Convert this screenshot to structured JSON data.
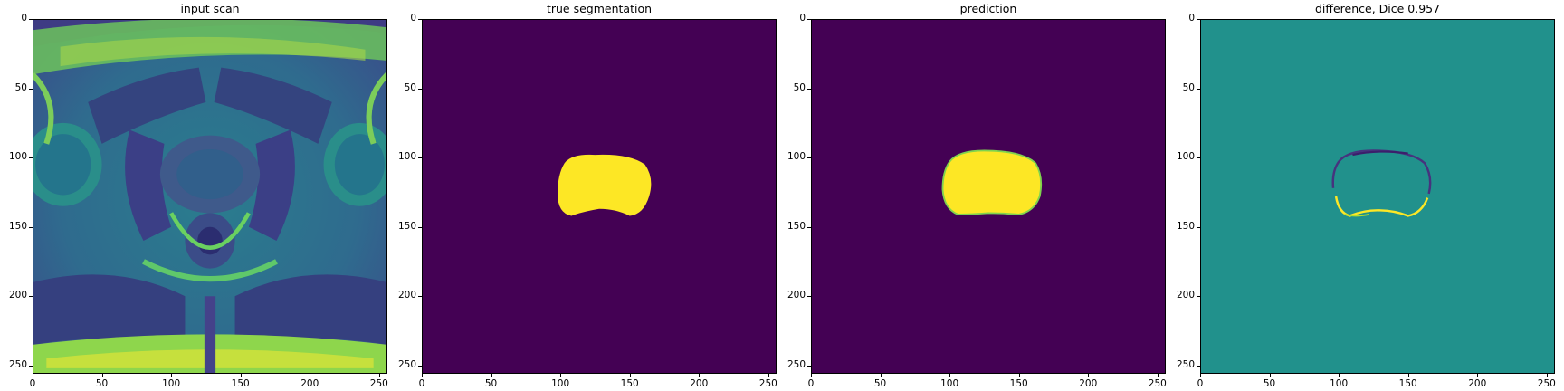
{
  "panels": [
    {
      "title": "input scan"
    },
    {
      "title": "true segmentation"
    },
    {
      "title": "prediction"
    },
    {
      "title": "difference, Dice 0.957"
    }
  ],
  "axes": {
    "x_ticks": [
      "0",
      "50",
      "100",
      "150",
      "200",
      "250"
    ],
    "y_ticks": [
      "0",
      "50",
      "100",
      "150",
      "200",
      "250"
    ],
    "range": [
      0,
      256
    ]
  },
  "colors": {
    "viridis_low": "#440154",
    "viridis_mid": "#21918c",
    "viridis_high": "#fde725"
  },
  "image_content": {
    "input_scan": "axial MRI of the pelvis",
    "true_segmentation": "yellow prostate mask on dark purple background",
    "prediction": "predicted yellow prostate mask on dark purple background",
    "difference": "thin outline of disagreement on teal background"
  }
}
